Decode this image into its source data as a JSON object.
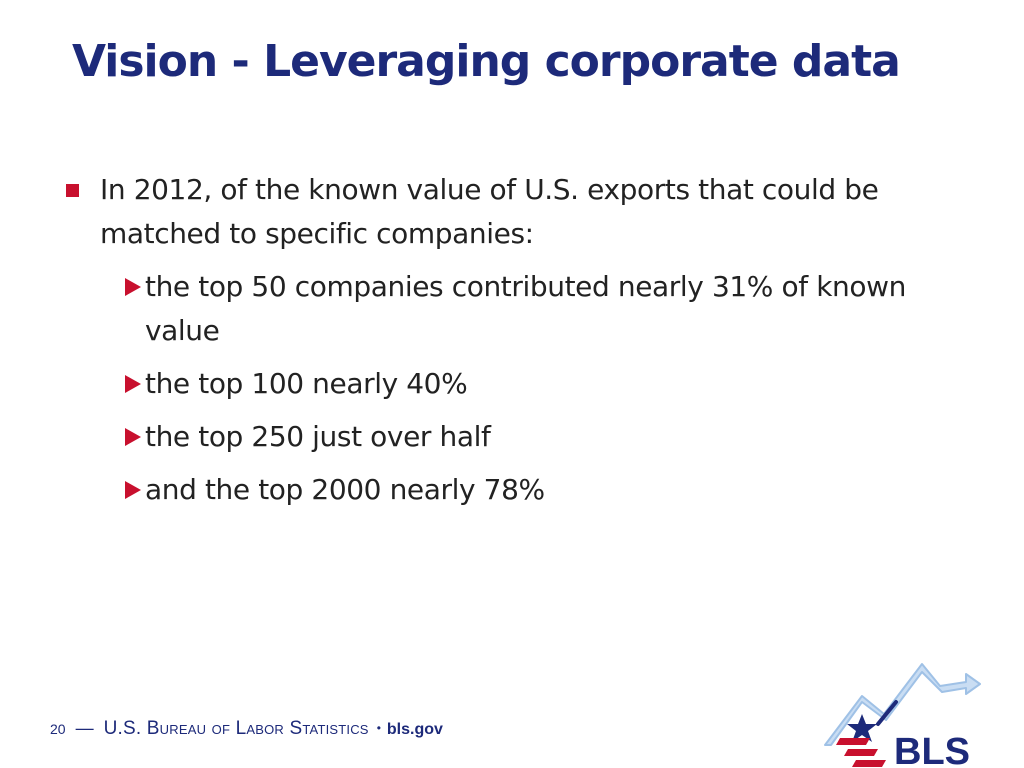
{
  "slide": {
    "title": "Vision - Leveraging corporate data",
    "bullet": {
      "text": "In 2012, of the known value of U.S. exports that could be matched to specific companies:",
      "subitems": [
        {
          "text": "the top 50 companies contributed nearly 31% of known value"
        },
        {
          "text": "the top 100 nearly 40%"
        },
        {
          "text": "the top 250 just over half"
        },
        {
          "text": "and the top 2000 nearly 78%"
        }
      ]
    }
  },
  "footer": {
    "page_number": "20",
    "dash": "—",
    "agency": "U.S. Bureau of Labor Statistics",
    "separator": "•",
    "website": "bls.gov"
  },
  "logo": {
    "text": "BLS",
    "icon": "bls-star-arrow-logo",
    "colors": {
      "navy": "#1d2a7a",
      "red": "#c8102e",
      "light_blue": "#9fc1e6"
    }
  },
  "colors": {
    "title": "#1d2a7a",
    "bullet_marker": "#c8102e",
    "body_text": "#222222"
  }
}
